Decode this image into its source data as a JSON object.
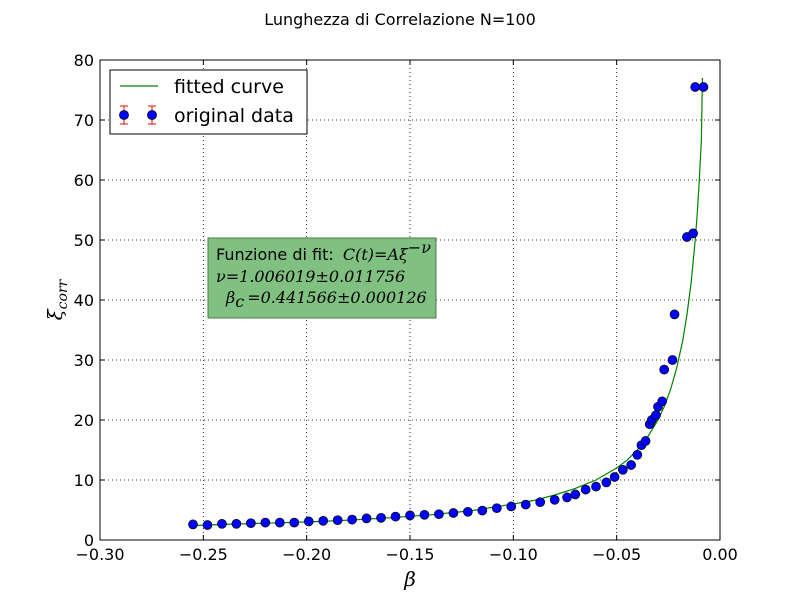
{
  "chart_data": {
    "type": "scatter",
    "title": "Lunghezza di Correlazione N=100",
    "xlabel": "β",
    "ylabel_base": "ξ",
    "ylabel_sub": "corr",
    "xlim": [
      -0.3,
      0.0
    ],
    "ylim": [
      0,
      80
    ],
    "xticks": [
      -0.3,
      -0.25,
      -0.2,
      -0.15,
      -0.1,
      -0.05,
      0.0
    ],
    "xtick_labels": [
      "−0.30",
      "−0.25",
      "−0.20",
      "−0.15",
      "−0.10",
      "−0.05",
      "0.00"
    ],
    "yticks": [
      0,
      10,
      20,
      30,
      40,
      50,
      60,
      70,
      80
    ],
    "ytick_labels": [
      "0",
      "10",
      "20",
      "30",
      "40",
      "50",
      "60",
      "70",
      "80"
    ],
    "grid": true,
    "legend_position": "top-left",
    "series": [
      {
        "name": "fitted curve",
        "kind": "line",
        "color": "#008000",
        "x": [
          -0.255,
          -0.24,
          -0.22,
          -0.2,
          -0.18,
          -0.16,
          -0.14,
          -0.12,
          -0.1,
          -0.09,
          -0.08,
          -0.07,
          -0.06,
          -0.05,
          -0.045,
          -0.04,
          -0.035,
          -0.03,
          -0.027,
          -0.024,
          -0.021,
          -0.018,
          -0.016,
          -0.014,
          -0.012,
          -0.011,
          -0.01,
          -0.009,
          -0.0085
        ],
        "y": [
          2.4,
          2.6,
          2.8,
          3.0,
          3.3,
          3.7,
          4.2,
          4.9,
          6.0,
          6.6,
          7.5,
          8.6,
          10.0,
          12.0,
          13.3,
          15.0,
          17.2,
          20.0,
          22.2,
          25.0,
          28.6,
          33.3,
          37.5,
          42.8,
          50.0,
          54.5,
          60.0,
          66.7,
          77.0
        ]
      },
      {
        "name": "original data",
        "kind": "markers",
        "color": "#0000ff",
        "errorbar_color": "#ff0000",
        "x": [
          -0.255,
          -0.248,
          -0.241,
          -0.234,
          -0.227,
          -0.22,
          -0.213,
          -0.206,
          -0.199,
          -0.192,
          -0.185,
          -0.178,
          -0.171,
          -0.164,
          -0.157,
          -0.15,
          -0.143,
          -0.136,
          -0.129,
          -0.122,
          -0.115,
          -0.108,
          -0.101,
          -0.094,
          -0.087,
          -0.08,
          -0.074,
          -0.07,
          -0.065,
          -0.06,
          -0.055,
          -0.051,
          -0.047,
          -0.043,
          -0.04,
          -0.038,
          -0.036,
          -0.034,
          -0.033,
          -0.031,
          -0.03,
          -0.028,
          -0.027,
          -0.023,
          -0.022,
          -0.016,
          -0.013,
          -0.012,
          -0.008
        ],
        "y": [
          2.6,
          2.5,
          2.7,
          2.7,
          2.8,
          2.9,
          2.9,
          2.9,
          3.1,
          3.2,
          3.3,
          3.4,
          3.6,
          3.7,
          3.9,
          4.1,
          4.2,
          4.3,
          4.5,
          4.7,
          4.9,
          5.3,
          5.6,
          5.9,
          6.3,
          6.7,
          7.1,
          7.6,
          8.4,
          8.9,
          9.6,
          10.5,
          11.7,
          12.5,
          14.2,
          15.8,
          16.5,
          19.3,
          20.0,
          20.8,
          22.2,
          23.1,
          28.4,
          30.0,
          37.6,
          50.5,
          51.1,
          75.5,
          75.5
        ]
      }
    ],
    "annotation": {
      "label_text": "Funzione di fit:",
      "formula": "C(t)=Aξ",
      "formula_exp": "−ν",
      "nu_line": "ν=1.006019±0.011756",
      "beta_sym": "β",
      "beta_sub": "c",
      "beta_rest": "=0.441566±0.000126",
      "box_color": "#80c080"
    }
  }
}
